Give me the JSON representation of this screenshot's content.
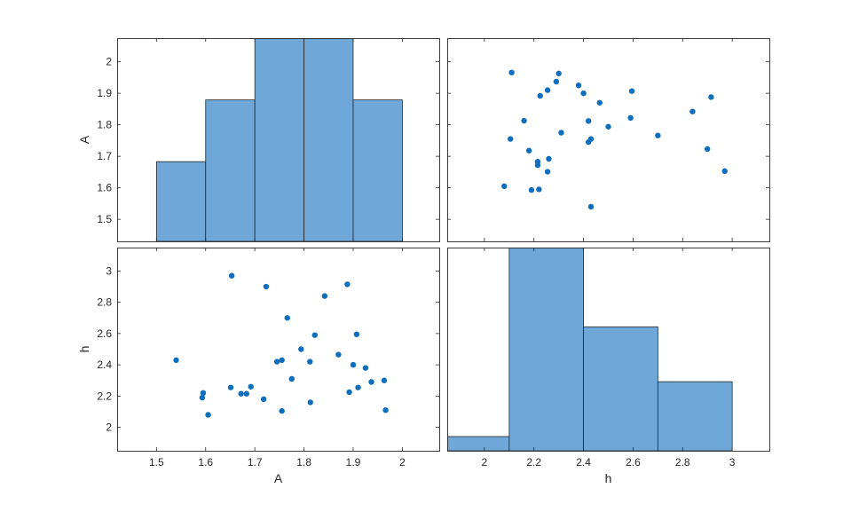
{
  "chart_data": {
    "type": "scatter",
    "layout": "plotmatrix",
    "variables": [
      "A",
      "h"
    ],
    "colors": {
      "bar": "#6fa8d8",
      "marker": "#0d6ebd",
      "axes": "#262626"
    },
    "grid": false,
    "legend": "none",
    "ticks": {
      "A": [
        "1.5",
        "1.6",
        "1.7",
        "1.8",
        "1.9",
        "2"
      ],
      "h": [
        "2",
        "2.2",
        "2.4",
        "2.6",
        "2.8",
        "3"
      ]
    },
    "panels": [
      {
        "id": "hist-A",
        "type": "bar",
        "xlabel": "",
        "ylabel": "A",
        "xlim": [
          1.42,
          2.075
        ],
        "ylim": [
          1.43,
          2.075
        ],
        "yticks": [
          1.5,
          1.6,
          1.7,
          1.8,
          1.9,
          2.0
        ],
        "bin_edges": [
          1.5,
          1.6,
          1.7,
          1.8,
          1.9,
          2.0
        ],
        "counts": [
          1,
          3,
          5,
          5,
          3
        ]
      },
      {
        "id": "scatter-h-vs-A",
        "type": "scatter",
        "xlabel": "",
        "ylabel": "",
        "xlim": [
          1.85,
          3.15
        ],
        "ylim": [
          1.43,
          2.075
        ]
      },
      {
        "id": "scatter-A-vs-h",
        "type": "scatter",
        "xlabel": "A",
        "ylabel": "h",
        "xlim": [
          1.42,
          2.075
        ],
        "ylim": [
          1.85,
          3.15
        ],
        "xticks": [
          1.5,
          1.6,
          1.7,
          1.8,
          1.9,
          2.0
        ],
        "yticks": [
          2.0,
          2.2,
          2.4,
          2.6,
          2.8,
          3.0
        ]
      },
      {
        "id": "hist-h",
        "type": "bar",
        "xlabel": "h",
        "ylabel": "",
        "xlim": [
          1.85,
          3.15
        ],
        "ylim": [
          0,
          5
        ],
        "xticks": [
          2.0,
          2.2,
          2.4,
          2.6,
          2.8,
          3.0
        ],
        "bin_edges": [
          1.8,
          2.1,
          2.4,
          2.7,
          3.0
        ],
        "counts": [
          0.35,
          5.05,
          3.05,
          1.7
        ]
      }
    ],
    "points": [
      {
        "A": 1.54,
        "h": 2.43
      },
      {
        "A": 1.593,
        "h": 2.19
      },
      {
        "A": 1.595,
        "h": 2.22
      },
      {
        "A": 1.605,
        "h": 2.08
      },
      {
        "A": 1.651,
        "h": 2.255
      },
      {
        "A": 1.653,
        "h": 2.97
      },
      {
        "A": 1.672,
        "h": 2.215
      },
      {
        "A": 1.683,
        "h": 2.215
      },
      {
        "A": 1.692,
        "h": 2.26
      },
      {
        "A": 1.718,
        "h": 2.18
      },
      {
        "A": 1.723,
        "h": 2.9
      },
      {
        "A": 1.745,
        "h": 2.42
      },
      {
        "A": 1.755,
        "h": 2.43
      },
      {
        "A": 1.755,
        "h": 2.105
      },
      {
        "A": 1.766,
        "h": 2.7
      },
      {
        "A": 1.775,
        "h": 2.31
      },
      {
        "A": 1.794,
        "h": 2.5
      },
      {
        "A": 1.812,
        "h": 2.42
      },
      {
        "A": 1.813,
        "h": 2.16
      },
      {
        "A": 1.822,
        "h": 2.59
      },
      {
        "A": 1.842,
        "h": 2.84
      },
      {
        "A": 1.87,
        "h": 2.465
      },
      {
        "A": 1.888,
        "h": 2.915
      },
      {
        "A": 1.892,
        "h": 2.225
      },
      {
        "A": 1.9,
        "h": 2.4
      },
      {
        "A": 1.907,
        "h": 2.595
      },
      {
        "A": 1.91,
        "h": 2.255
      },
      {
        "A": 1.925,
        "h": 2.38
      },
      {
        "A": 1.937,
        "h": 2.29
      },
      {
        "A": 1.963,
        "h": 2.3
      },
      {
        "A": 1.966,
        "h": 2.11
      }
    ]
  }
}
